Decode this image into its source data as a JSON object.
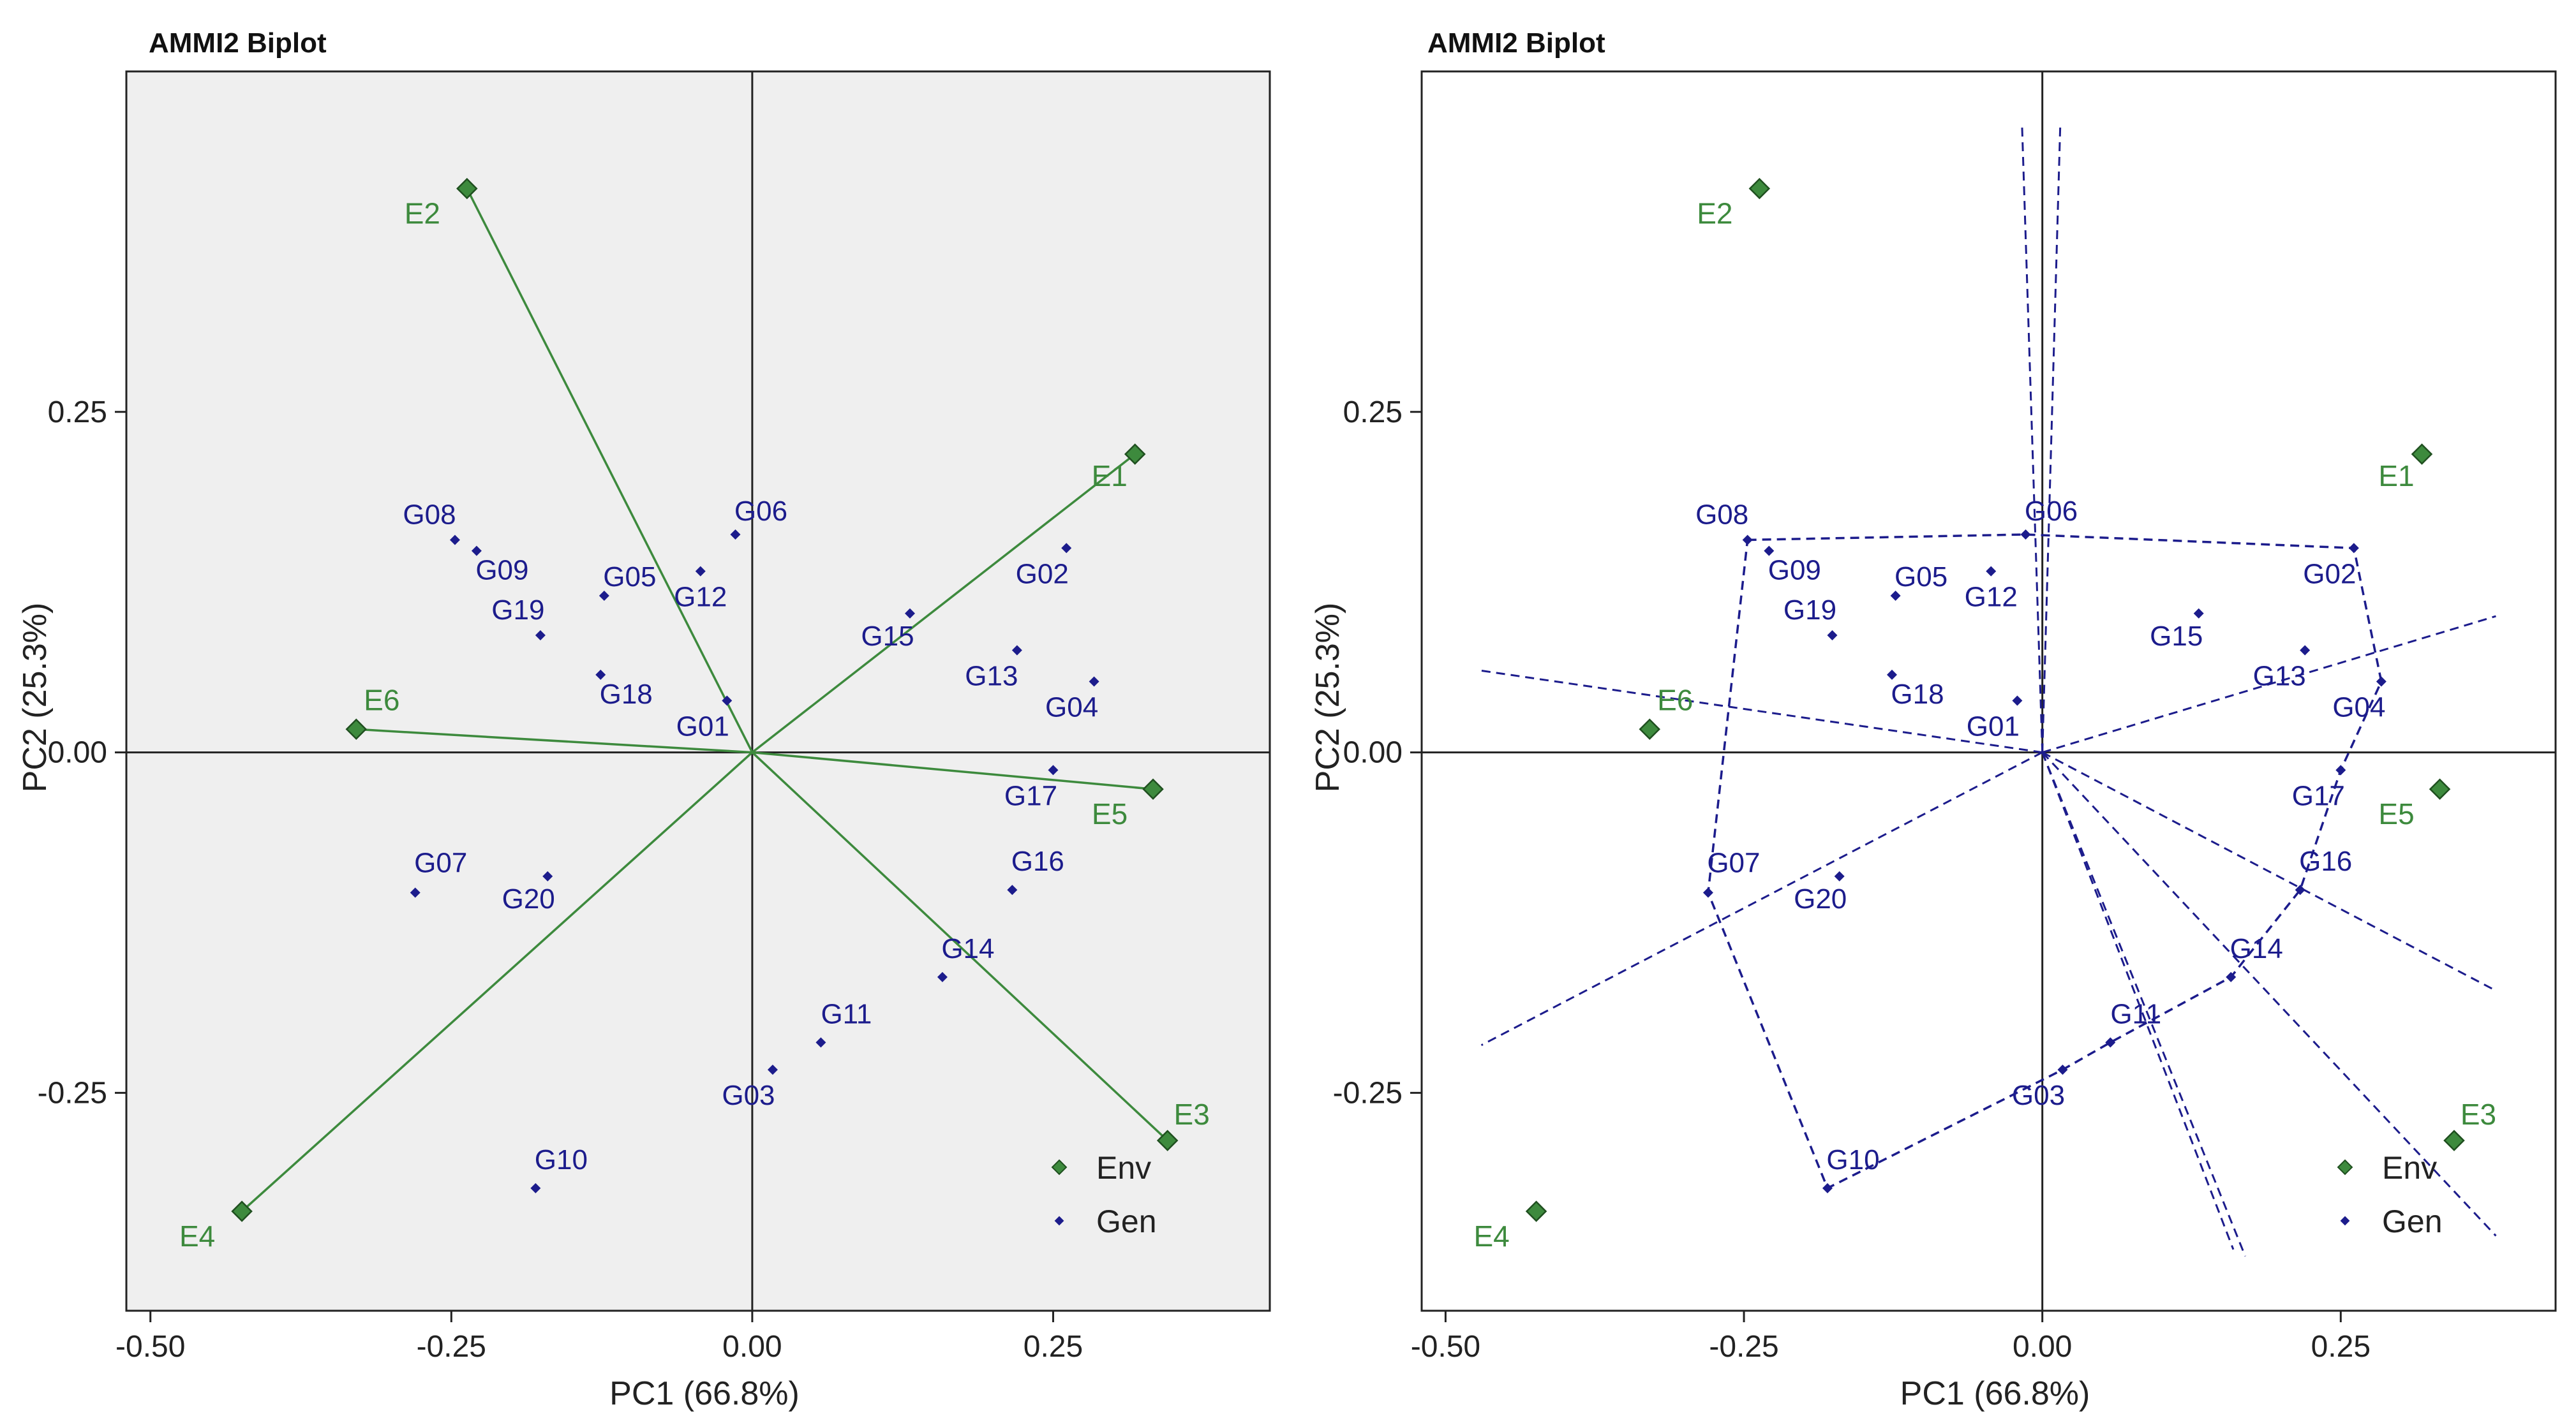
{
  "chart_data": [
    {
      "type": "scatter",
      "title": "AMMI2 Biplot",
      "xlabel": "PC1 (66.8%)",
      "ylabel": "PC2 (25.3%)",
      "xlim": [
        -0.52,
        0.43
      ],
      "ylim": [
        -0.41,
        0.5
      ],
      "xticks": [
        -0.5,
        -0.25,
        0.0,
        0.25
      ],
      "xtick_labels": [
        "-0.50",
        "-0.25",
        "0.00",
        "0.25"
      ],
      "yticks": [
        -0.25,
        0.0,
        0.25
      ],
      "ytick_labels": [
        "-0.25",
        "0.00",
        "0.25"
      ],
      "background": "#efefef",
      "legend_position": "bottom-right",
      "env_vectors": true,
      "polygon": false,
      "series": [
        {
          "name": "Env",
          "color": "#3d8a3d",
          "points": [
            {
              "label": "E1",
              "x": 0.318,
              "y": 0.219
            },
            {
              "label": "E2",
              "x": -0.237,
              "y": 0.414
            },
            {
              "label": "E3",
              "x": 0.345,
              "y": -0.285
            },
            {
              "label": "E4",
              "x": -0.424,
              "y": -0.337
            },
            {
              "label": "E5",
              "x": 0.333,
              "y": -0.027
            },
            {
              "label": "E6",
              "x": -0.329,
              "y": 0.017
            }
          ]
        },
        {
          "name": "Gen",
          "color": "#1c1c8c",
          "points": [
            {
              "label": "G01",
              "x": -0.021,
              "y": 0.038
            },
            {
              "label": "G02",
              "x": 0.261,
              "y": 0.15
            },
            {
              "label": "G03",
              "x": 0.017,
              "y": -0.233
            },
            {
              "label": "G04",
              "x": 0.284,
              "y": 0.052
            },
            {
              "label": "G05",
              "x": -0.123,
              "y": 0.115
            },
            {
              "label": "G06",
              "x": -0.014,
              "y": 0.16
            },
            {
              "label": "G07",
              "x": -0.28,
              "y": -0.103
            },
            {
              "label": "G08",
              "x": -0.247,
              "y": 0.156
            },
            {
              "label": "G09",
              "x": -0.229,
              "y": 0.148
            },
            {
              "label": "G10",
              "x": -0.18,
              "y": -0.32
            },
            {
              "label": "G11",
              "x": 0.057,
              "y": -0.213
            },
            {
              "label": "G12",
              "x": -0.043,
              "y": 0.133
            },
            {
              "label": "G13",
              "x": 0.22,
              "y": 0.075
            },
            {
              "label": "G14",
              "x": 0.158,
              "y": -0.165
            },
            {
              "label": "G15",
              "x": 0.131,
              "y": 0.102
            },
            {
              "label": "G16",
              "x": 0.216,
              "y": -0.101
            },
            {
              "label": "G17",
              "x": 0.25,
              "y": -0.013
            },
            {
              "label": "G18",
              "x": -0.126,
              "y": 0.057
            },
            {
              "label": "G19",
              "x": -0.176,
              "y": 0.086
            },
            {
              "label": "G20",
              "x": -0.17,
              "y": -0.091
            }
          ]
        }
      ]
    },
    {
      "type": "scatter",
      "title": "AMMI2 Biplot",
      "xlabel": "PC1 (66.8%)",
      "ylabel": "PC2 (25.3%)",
      "xlim": [
        -0.52,
        0.43
      ],
      "ylim": [
        -0.41,
        0.5
      ],
      "xticks": [
        -0.5,
        -0.25,
        0.0,
        0.25
      ],
      "xtick_labels": [
        "-0.50",
        "-0.25",
        "0.00",
        "0.25"
      ],
      "yticks": [
        -0.25,
        0.0,
        0.25
      ],
      "ytick_labels": [
        "-0.25",
        "0.00",
        "0.25"
      ],
      "background": "#ffffff",
      "legend_position": "bottom-right",
      "env_vectors": false,
      "polygon": true,
      "hull_order": [
        "G08",
        "G06",
        "G02",
        "G04",
        "G17",
        "G16",
        "G14",
        "G11",
        "G03",
        "G10",
        "G07"
      ],
      "sector_lines": [
        [
          -0.47,
          0.06
        ],
        [
          -0.47,
          -0.215
        ],
        [
          0.38,
          0.1
        ],
        [
          0.38,
          -0.175
        ],
        [
          0.38,
          -0.355
        ],
        [
          0.17,
          -0.37
        ],
        [
          0.16,
          -0.365
        ],
        [
          -0.017,
          0.46
        ],
        [
          0.015,
          0.46
        ]
      ],
      "series": [
        {
          "name": "Env",
          "color": "#3d8a3d",
          "points": [
            {
              "label": "E1",
              "x": 0.318,
              "y": 0.219
            },
            {
              "label": "E2",
              "x": -0.237,
              "y": 0.414
            },
            {
              "label": "E3",
              "x": 0.345,
              "y": -0.285
            },
            {
              "label": "E4",
              "x": -0.424,
              "y": -0.337
            },
            {
              "label": "E5",
              "x": 0.333,
              "y": -0.027
            },
            {
              "label": "E6",
              "x": -0.329,
              "y": 0.017
            }
          ]
        },
        {
          "name": "Gen",
          "color": "#1c1c8c",
          "points": [
            {
              "label": "G01",
              "x": -0.021,
              "y": 0.038
            },
            {
              "label": "G02",
              "x": 0.261,
              "y": 0.15
            },
            {
              "label": "G03",
              "x": 0.017,
              "y": -0.233
            },
            {
              "label": "G04",
              "x": 0.284,
              "y": 0.052
            },
            {
              "label": "G05",
              "x": -0.123,
              "y": 0.115
            },
            {
              "label": "G06",
              "x": -0.014,
              "y": 0.16
            },
            {
              "label": "G07",
              "x": -0.28,
              "y": -0.103
            },
            {
              "label": "G08",
              "x": -0.247,
              "y": 0.156
            },
            {
              "label": "G09",
              "x": -0.229,
              "y": 0.148
            },
            {
              "label": "G10",
              "x": -0.18,
              "y": -0.32
            },
            {
              "label": "G11",
              "x": 0.057,
              "y": -0.213
            },
            {
              "label": "G12",
              "x": -0.043,
              "y": 0.133
            },
            {
              "label": "G13",
              "x": 0.22,
              "y": 0.075
            },
            {
              "label": "G14",
              "x": 0.158,
              "y": -0.165
            },
            {
              "label": "G15",
              "x": 0.131,
              "y": 0.102
            },
            {
              "label": "G16",
              "x": 0.216,
              "y": -0.101
            },
            {
              "label": "G17",
              "x": 0.25,
              "y": -0.013
            },
            {
              "label": "G18",
              "x": -0.126,
              "y": 0.057
            },
            {
              "label": "G19",
              "x": -0.176,
              "y": 0.086
            },
            {
              "label": "G20",
              "x": -0.17,
              "y": -0.091
            }
          ]
        }
      ]
    }
  ]
}
